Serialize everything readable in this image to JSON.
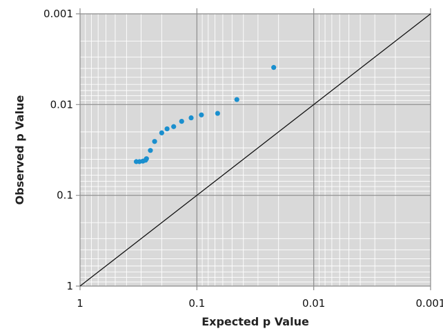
{
  "chart_data": {
    "type": "scatter",
    "title": "",
    "xlabel": "Expected p Value",
    "ylabel": "Observed p Value",
    "x_scale": "log-reversed",
    "y_scale": "log-reversed",
    "xlim": [
      1,
      0.001
    ],
    "ylim": [
      1,
      0.001
    ],
    "x_ticks": [
      {
        "value": 1,
        "label": "1"
      },
      {
        "value": 0.1,
        "label": "0.1"
      },
      {
        "value": 0.01,
        "label": "0.01"
      },
      {
        "value": 0.001,
        "label": "0.001"
      }
    ],
    "y_ticks": [
      {
        "value": 1,
        "label": "1"
      },
      {
        "value": 0.1,
        "label": "0.1"
      },
      {
        "value": 0.01,
        "label": "0.01"
      },
      {
        "value": 0.001,
        "label": "0.001"
      }
    ],
    "grid": true,
    "legend": "none",
    "reference_line": {
      "from": [
        1,
        1
      ],
      "to": [
        0.001,
        0.001
      ]
    },
    "series": [
      {
        "color": "#1a8fce",
        "points": [
          [
            0.022,
            0.0039
          ],
          [
            0.0455,
            0.0088
          ],
          [
            0.0665,
            0.0125
          ],
          [
            0.0915,
            0.013
          ],
          [
            0.112,
            0.014
          ],
          [
            0.135,
            0.0153
          ],
          [
            0.158,
            0.0175
          ],
          [
            0.18,
            0.0185
          ],
          [
            0.2,
            0.0205
          ],
          [
            0.23,
            0.0255
          ],
          [
            0.25,
            0.032
          ],
          [
            0.27,
            0.0395
          ],
          [
            0.275,
            0.041
          ],
          [
            0.29,
            0.042
          ],
          [
            0.31,
            0.0425
          ],
          [
            0.33,
            0.0425
          ]
        ]
      }
    ]
  }
}
